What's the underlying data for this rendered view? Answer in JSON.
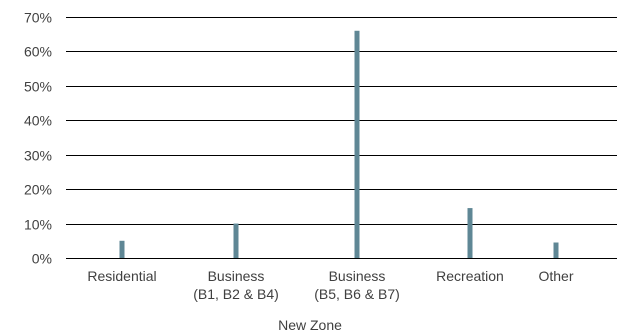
{
  "chart_data": {
    "type": "bar",
    "xlabel": "New Zone",
    "ylabel": "",
    "ylim": [
      0,
      70
    ],
    "y_ticks": [
      "0%",
      "10%",
      "20%",
      "30%",
      "40%",
      "50%",
      "60%",
      "70%"
    ],
    "y_tick_values": [
      0,
      10,
      20,
      30,
      40,
      50,
      60,
      70
    ],
    "categories": [
      {
        "label": [
          "Residential"
        ],
        "value": 5
      },
      {
        "label": [
          "Business",
          "(B1, B2 & B4)"
        ],
        "value": 10
      },
      {
        "label": [
          "Business",
          "(B5, B6 & B7)"
        ],
        "value": 66
      },
      {
        "label": [
          "Recreation"
        ],
        "value": 14.5
      },
      {
        "label": [
          "Other"
        ],
        "value": 4.5
      }
    ],
    "grid": true,
    "bar_color": "#5f8795",
    "grid_color": "#000000"
  }
}
